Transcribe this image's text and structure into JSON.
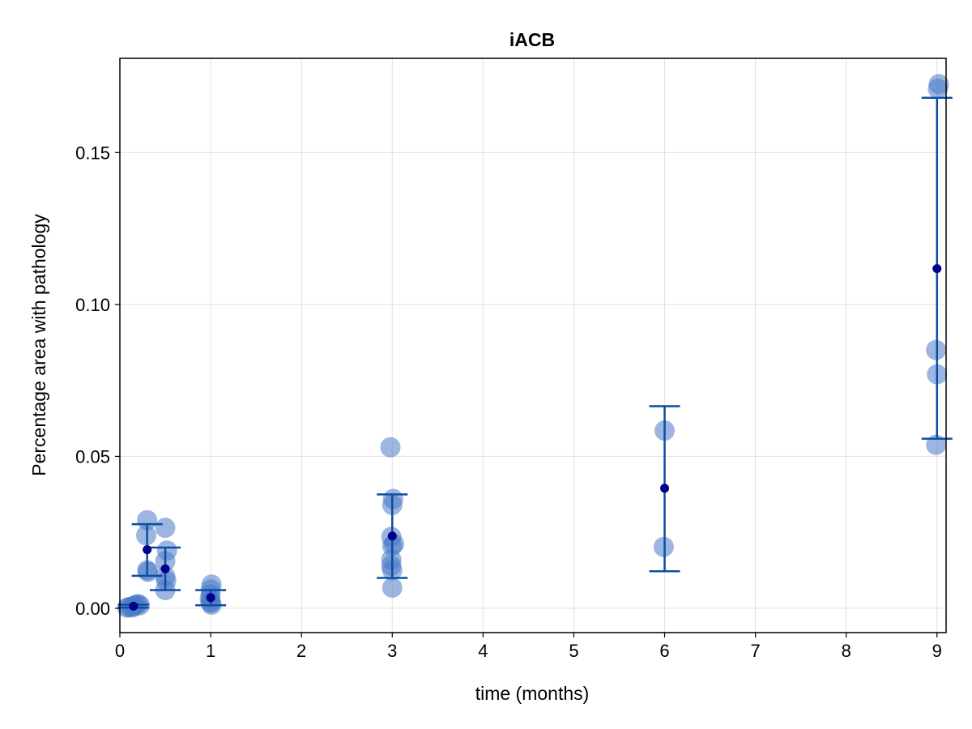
{
  "chart_data": {
    "type": "scatter",
    "title": "iACB",
    "xlabel": "time (months)",
    "ylabel": "Percentage area with pathology",
    "xlim": [
      0,
      9.1
    ],
    "ylim": [
      -0.008,
      0.181
    ],
    "x_ticks": [
      0,
      1,
      2,
      3,
      4,
      5,
      6,
      7,
      8,
      9
    ],
    "y_ticks": [
      0.0,
      0.05,
      0.1,
      0.15
    ],
    "y_tick_labels": [
      "0.00",
      "0.05",
      "0.10",
      "0.15"
    ],
    "grid": true,
    "colors": {
      "points": "#4a7ac8",
      "mean": "#00008b",
      "errorbar": "#0b4ea2"
    },
    "series": [
      {
        "kind": "individual",
        "points": [
          {
            "x": 0.08,
            "y": 0.0002
          },
          {
            "x": 0.1,
            "y": 0.0004
          },
          {
            "x": 0.13,
            "y": 0.0006
          },
          {
            "x": 0.16,
            "y": 0.0008
          },
          {
            "x": 0.18,
            "y": 0.0012
          },
          {
            "x": 0.2,
            "y": 0.0014
          },
          {
            "x": 0.22,
            "y": 0.001
          },
          {
            "x": 0.14,
            "y": 0.0003
          },
          {
            "x": 0.3,
            "y": 0.029
          },
          {
            "x": 0.29,
            "y": 0.024
          },
          {
            "x": 0.3,
            "y": 0.0125
          },
          {
            "x": 0.31,
            "y": 0.012
          },
          {
            "x": 0.5,
            "y": 0.0265
          },
          {
            "x": 0.52,
            "y": 0.019
          },
          {
            "x": 0.5,
            "y": 0.0155
          },
          {
            "x": 0.5,
            "y": 0.0105
          },
          {
            "x": 0.51,
            "y": 0.009
          },
          {
            "x": 0.5,
            "y": 0.006
          },
          {
            "x": 1.01,
            "y": 0.0078
          },
          {
            "x": 1.0,
            "y": 0.0062
          },
          {
            "x": 1.0,
            "y": 0.0045
          },
          {
            "x": 0.99,
            "y": 0.0032
          },
          {
            "x": 1.0,
            "y": 0.0022
          },
          {
            "x": 1.01,
            "y": 0.0012
          },
          {
            "x": 1.0,
            "y": 0.0018
          },
          {
            "x": 2.98,
            "y": 0.053
          },
          {
            "x": 3.01,
            "y": 0.036
          },
          {
            "x": 3.0,
            "y": 0.034
          },
          {
            "x": 2.99,
            "y": 0.0235
          },
          {
            "x": 3.02,
            "y": 0.0212
          },
          {
            "x": 3.0,
            "y": 0.0205
          },
          {
            "x": 2.99,
            "y": 0.016
          },
          {
            "x": 2.99,
            "y": 0.014
          },
          {
            "x": 3.0,
            "y": 0.0125
          },
          {
            "x": 3.0,
            "y": 0.0068
          },
          {
            "x": 6.0,
            "y": 0.0585
          },
          {
            "x": 5.99,
            "y": 0.0202
          },
          {
            "x": 9.02,
            "y": 0.1725
          },
          {
            "x": 9.01,
            "y": 0.171
          },
          {
            "x": 8.99,
            "y": 0.085
          },
          {
            "x": 9.0,
            "y": 0.077
          },
          {
            "x": 8.99,
            "y": 0.0538
          }
        ]
      },
      {
        "kind": "mean_with_error",
        "points": [
          {
            "x": 0.15,
            "y": 0.0007,
            "lo": 0.0002,
            "hi": 0.0012
          },
          {
            "x": 0.3,
            "y": 0.0193,
            "lo": 0.0107,
            "hi": 0.0277
          },
          {
            "x": 0.5,
            "y": 0.013,
            "lo": 0.006,
            "hi": 0.02
          },
          {
            "x": 1.0,
            "y": 0.0035,
            "lo": 0.001,
            "hi": 0.006
          },
          {
            "x": 3.0,
            "y": 0.0238,
            "lo": 0.01,
            "hi": 0.0375
          },
          {
            "x": 6.0,
            "y": 0.0395,
            "lo": 0.0122,
            "hi": 0.0665
          },
          {
            "x": 9.0,
            "y": 0.1118,
            "lo": 0.0558,
            "hi": 0.168
          }
        ]
      }
    ]
  }
}
